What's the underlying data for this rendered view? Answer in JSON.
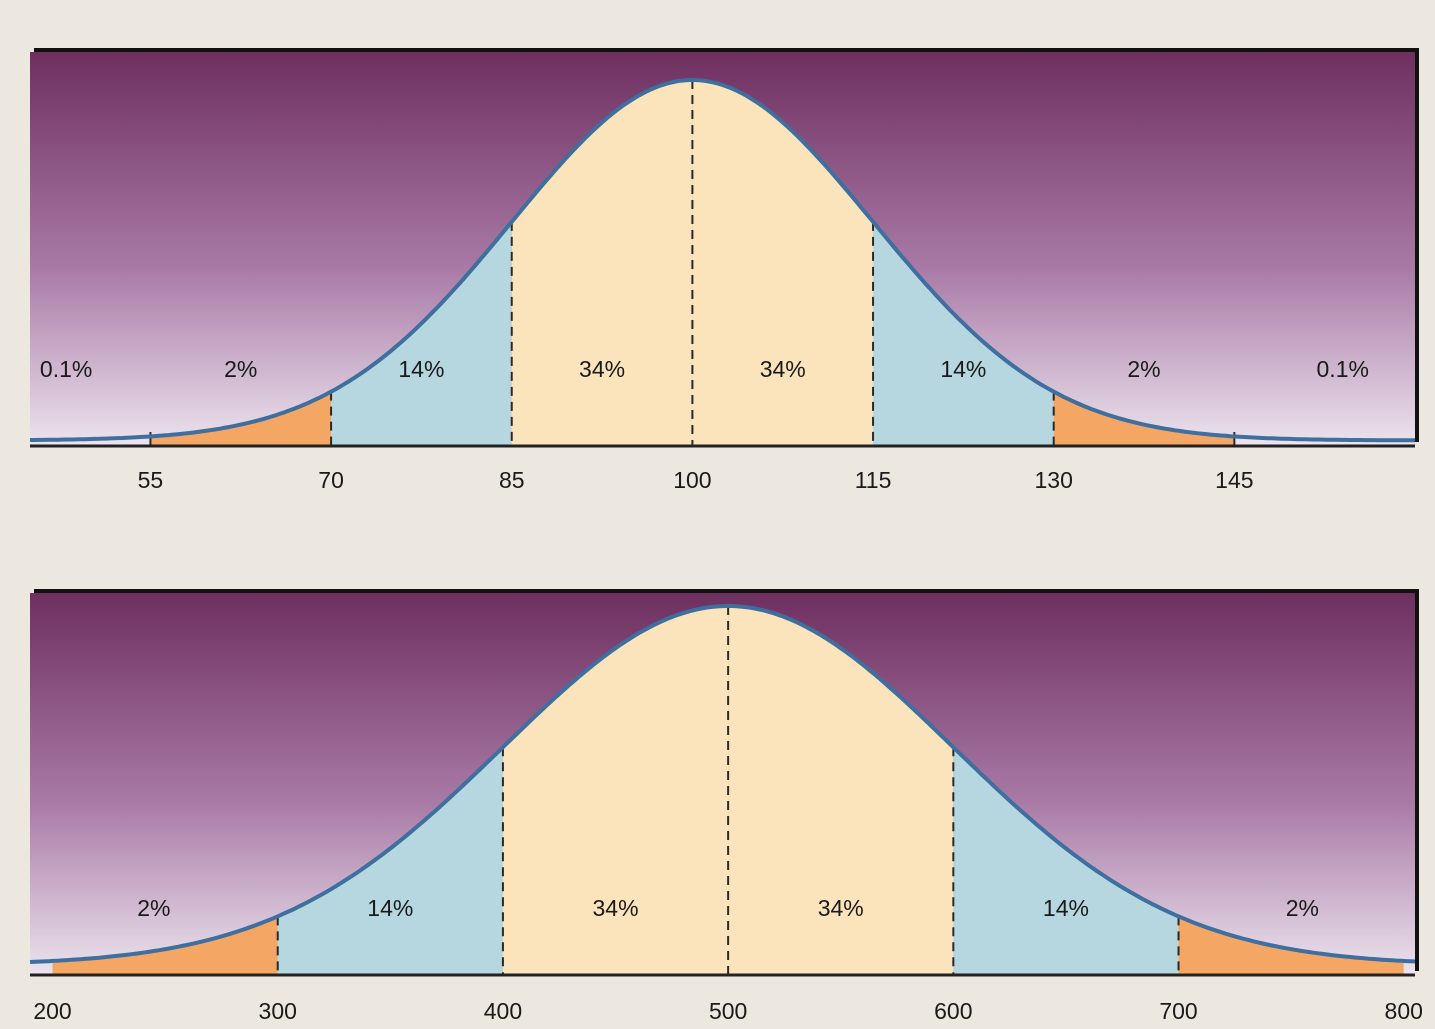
{
  "chart_data": [
    {
      "type": "area",
      "title": "",
      "xlabel": "",
      "ylabel": "",
      "distribution": "normal",
      "mean": 100,
      "sd": 15,
      "xlim": [
        45,
        160
      ],
      "x_ticks": [
        55,
        70,
        85,
        100,
        115,
        130,
        145
      ],
      "x_tick_labels": [
        "55",
        "70",
        "85",
        "100",
        "115",
        "130",
        "145"
      ],
      "region_boundaries": [
        55,
        70,
        85,
        100,
        115,
        130,
        145
      ],
      "region_labels": [
        {
          "x": 48,
          "text": "0.1%"
        },
        {
          "x": 62.5,
          "text": "2%"
        },
        {
          "x": 77.5,
          "text": "14%"
        },
        {
          "x": 92.5,
          "text": "34%"
        },
        {
          "x": 107.5,
          "text": "34%"
        },
        {
          "x": 122.5,
          "text": "14%"
        },
        {
          "x": 137.5,
          "text": "2%"
        },
        {
          "x": 154,
          "text": "0.1%"
        }
      ],
      "colors": {
        "center": "#fbe4bb",
        "inner": "#b6d7df",
        "outer": "#f4a664",
        "curve": "#3e6f9e"
      }
    },
    {
      "type": "area",
      "title": "",
      "xlabel": "",
      "ylabel": "",
      "distribution": "normal",
      "mean": 500,
      "sd": 100,
      "xlim": [
        190,
        805
      ],
      "x_ticks": [
        200,
        300,
        400,
        500,
        600,
        700,
        800
      ],
      "x_tick_labels": [
        "200",
        "300",
        "400",
        "500",
        "600",
        "700",
        "800"
      ],
      "region_boundaries": [
        300,
        400,
        500,
        600,
        700
      ],
      "region_labels": [
        {
          "x": 245,
          "text": "2%"
        },
        {
          "x": 350,
          "text": "14%"
        },
        {
          "x": 450,
          "text": "34%"
        },
        {
          "x": 550,
          "text": "34%"
        },
        {
          "x": 650,
          "text": "14%"
        },
        {
          "x": 755,
          "text": "2%"
        }
      ],
      "colors": {
        "center": "#fbe4bb",
        "inner": "#b6d7df",
        "outer": "#f4a664",
        "curve": "#3e6f9e"
      }
    }
  ]
}
